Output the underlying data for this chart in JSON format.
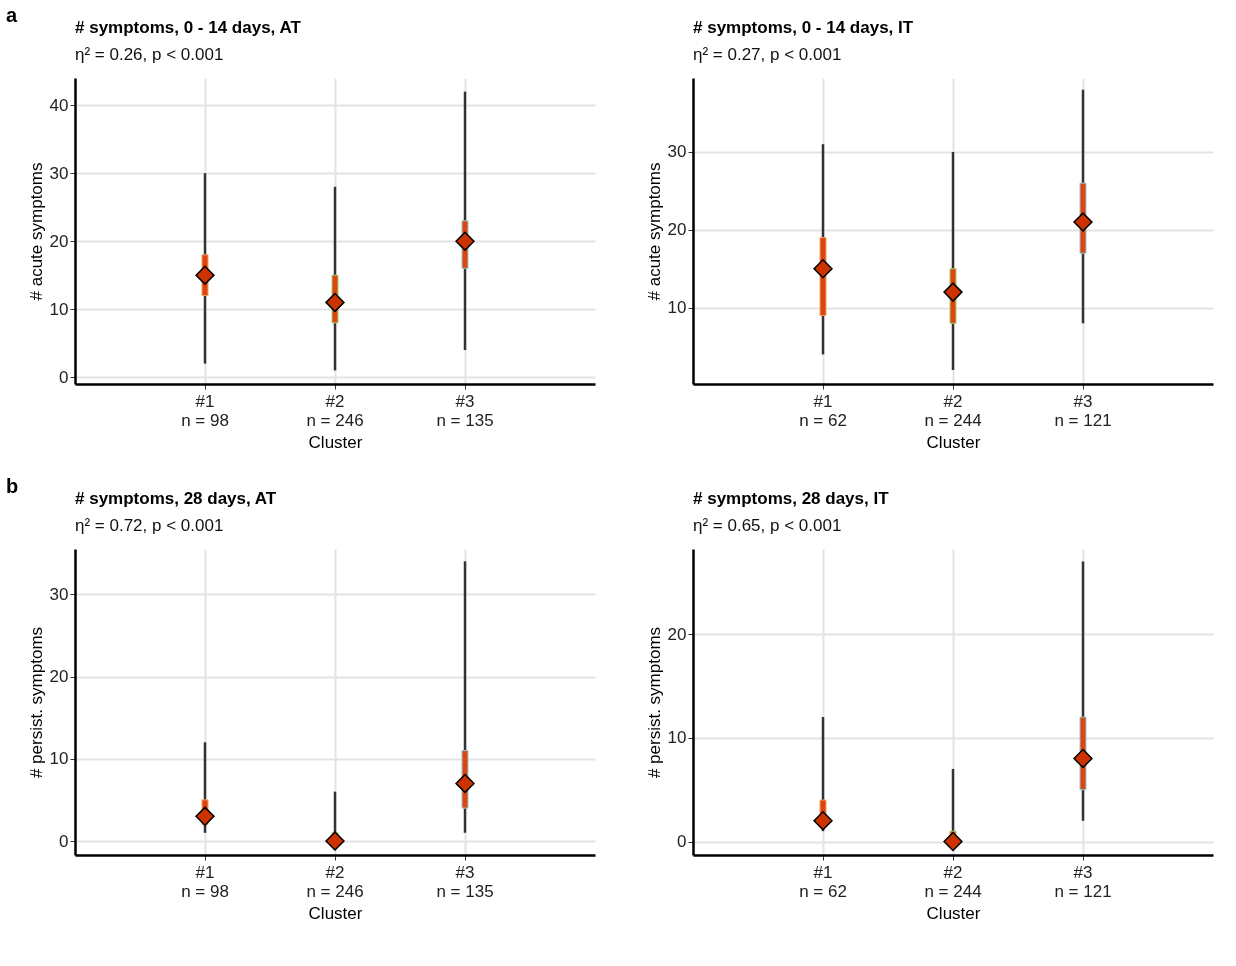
{
  "chart_data": [
    {
      "type": "box",
      "title": "# symptoms, 0 - 14 days, AT",
      "subtitle": "η² = 0.26, p < 0.001",
      "xlabel": "Cluster",
      "ylabel": "# acute symptoms",
      "annotations": [
        "a"
      ],
      "categories": [
        "#1\nn = 98",
        "#2\nn = 246",
        "#3\nn = 135"
      ],
      "colors": [
        "#e8a46c",
        "#9fcf6e",
        "#8ccbd6"
      ],
      "boxes": [
        {
          "low": 2,
          "q1": 12,
          "median": 15,
          "q3": 18,
          "high": 30
        },
        {
          "low": 1,
          "q1": 8,
          "median": 11,
          "q3": 15,
          "high": 28
        },
        {
          "low": 4,
          "q1": 16,
          "median": 20,
          "q3": 23,
          "high": 42
        }
      ],
      "series": [
        {
          "type": "scatter",
          "color": "#cc3300",
          "x": [
            "#1\nn = 98",
            "#2\nn = 246",
            "#3\nn = 135"
          ],
          "values": [
            15,
            11,
            20
          ]
        }
      ],
      "marker": "diamond",
      "ylim": [
        -1,
        44
      ],
      "yticks": [
        0,
        10,
        20,
        30,
        40
      ],
      "grid": true
    },
    {
      "type": "box",
      "title": "# symptoms, 0 - 14 days, IT",
      "subtitle": "η² = 0.27, p < 0.001",
      "xlabel": "Cluster",
      "ylabel": "# acute symptoms",
      "categories": [
        "#1\nn = 62",
        "#2\nn = 244",
        "#3\nn = 121"
      ],
      "colors": [
        "#e8a46c",
        "#9fcf6e",
        "#8ccbd6"
      ],
      "boxes": [
        {
          "low": 4,
          "q1": 9,
          "median": 15,
          "q3": 19,
          "high": 31
        },
        {
          "low": 2,
          "q1": 8,
          "median": 12,
          "q3": 15,
          "high": 30
        },
        {
          "low": 8,
          "q1": 17,
          "median": 21,
          "q3": 26,
          "high": 38
        }
      ],
      "series": [
        {
          "type": "scatter",
          "color": "#cc3300",
          "x": [
            "#1\nn = 62",
            "#2\nn = 244",
            "#3\nn = 121"
          ],
          "values": [
            15,
            12,
            21
          ]
        }
      ],
      "marker": "diamond",
      "ylim": [
        0.2,
        39.5
      ],
      "yticks": [
        10,
        20,
        30
      ],
      "grid": true
    },
    {
      "type": "box",
      "title": "# symptoms, 28 days, AT",
      "subtitle": "η² = 0.72, p < 0.001",
      "xlabel": "Cluster",
      "ylabel": "# persist. symptoms",
      "annotations": [
        "b"
      ],
      "categories": [
        "#1\nn = 98",
        "#2\nn = 246",
        "#3\nn = 135"
      ],
      "colors": [
        "#e8a46c",
        "#9fcf6e",
        "#8ccbd6"
      ],
      "boxes": [
        {
          "low": 1,
          "q1": 2,
          "median": 3,
          "q3": 5,
          "high": 12
        },
        {
          "low": 0,
          "q1": 0,
          "median": 0,
          "q3": 1,
          "high": 6
        },
        {
          "low": 1,
          "q1": 4,
          "median": 7,
          "q3": 11,
          "high": 34
        }
      ],
      "series": [
        {
          "type": "scatter",
          "color": "#cc3300",
          "x": [
            "#1\nn = 98",
            "#2\nn = 246",
            "#3\nn = 135"
          ],
          "values": [
            3,
            0,
            7
          ]
        }
      ],
      "marker": "diamond",
      "ylim": [
        -1.7,
        35.5
      ],
      "yticks": [
        0,
        10,
        20,
        30
      ],
      "grid": true
    },
    {
      "type": "box",
      "title": "# symptoms, 28 days, IT",
      "subtitle": "η² = 0.65, p < 0.001",
      "xlabel": "Cluster",
      "ylabel": "# persist. symptoms",
      "categories": [
        "#1\nn = 62",
        "#2\nn = 244",
        "#3\nn = 121"
      ],
      "colors": [
        "#e8a46c",
        "#9fcf6e",
        "#8ccbd6"
      ],
      "boxes": [
        {
          "low": 1,
          "q1": 2,
          "median": 2,
          "q3": 4,
          "high": 12
        },
        {
          "low": 0,
          "q1": 0,
          "median": 0,
          "q3": 1,
          "high": 7
        },
        {
          "low": 2,
          "q1": 5,
          "median": 8,
          "q3": 12,
          "high": 27
        }
      ],
      "series": [
        {
          "type": "scatter",
          "color": "#cc3300",
          "x": [
            "#1\nn = 62",
            "#2\nn = 244",
            "#3\nn = 121"
          ],
          "values": [
            2,
            0,
            8
          ]
        }
      ],
      "marker": "diamond",
      "ylim": [
        -1.3,
        28.2
      ],
      "yticks": [
        0,
        10,
        20
      ],
      "grid": true
    }
  ]
}
